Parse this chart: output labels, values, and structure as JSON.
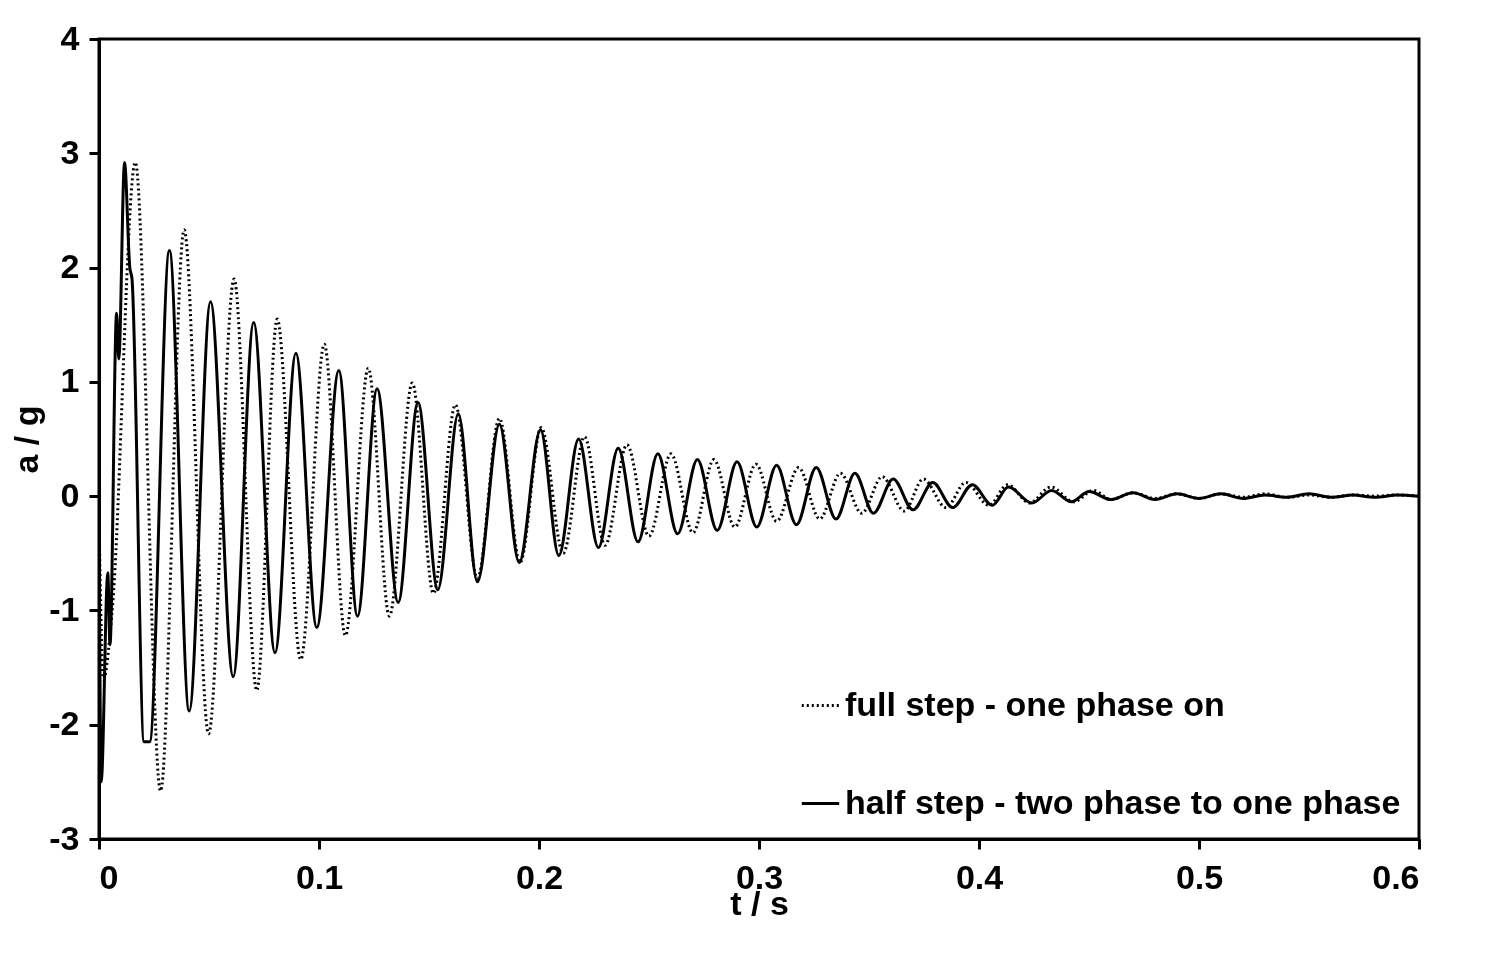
{
  "chart_data": {
    "type": "line",
    "xlabel": "t / s",
    "ylabel": "a / g",
    "xlim": [
      0,
      0.6
    ],
    "ylim": [
      -3,
      4
    ],
    "xticks": [
      0,
      0.1,
      0.2,
      0.3,
      0.4,
      0.5,
      0.6
    ],
    "yticks": [
      -3,
      -2,
      -1,
      0,
      1,
      2,
      3,
      4
    ],
    "legend": "bottom right",
    "series": [
      {
        "name": "full step - one phase on",
        "color": "#000000",
        "line_style": "dotted",
        "x": [
          0,
          0.002,
          0.006,
          0.0165,
          0.028,
          0.0387,
          0.0498,
          0.0614,
          0.0717,
          0.081,
          0.0917,
          0.1024,
          0.112,
          0.1224,
          0.132,
          0.1424,
          0.152,
          0.162,
          0.172,
          0.182,
          0.1914,
          0.201,
          0.211,
          0.2207,
          0.23,
          0.24,
          0.25,
          0.26,
          0.27,
          0.2795,
          0.289,
          0.2986,
          0.308,
          0.318,
          0.3276,
          0.337,
          0.3467,
          0.356,
          0.366,
          0.3747,
          0.385,
          0.394,
          0.4045,
          0.413,
          0.423,
          0.4326,
          0.443,
          0.452,
          0.46,
          0.47,
          0.48,
          0.49,
          0.5,
          0.51,
          0.52,
          0.53,
          0.54,
          0.55,
          0.56,
          0.57,
          0.58,
          0.59,
          0.6
        ],
        "values": [
          -0.2,
          -1.6,
          -1.0,
          2.92,
          -2.58,
          2.33,
          -2.08,
          1.9,
          -1.7,
          1.55,
          -1.43,
          1.33,
          -1.22,
          1.12,
          -1.05,
          0.99,
          -0.85,
          0.8,
          -0.72,
          0.68,
          -0.58,
          0.6,
          -0.5,
          0.52,
          -0.43,
          0.45,
          -0.35,
          0.37,
          -0.32,
          0.32,
          -0.27,
          0.28,
          -0.22,
          0.25,
          -0.2,
          0.2,
          -0.15,
          0.17,
          -0.13,
          0.15,
          -0.1,
          0.12,
          -0.08,
          0.1,
          -0.06,
          0.08,
          -0.05,
          0.05,
          -0.03,
          0.03,
          -0.02,
          0.02,
          -0.02,
          0.02,
          -0.01,
          0.02,
          -0.01,
          0.01,
          -0.01,
          0.01,
          0,
          0.01,
          0
        ]
      },
      {
        "name": "half step - two phase to one phase",
        "color": "#000000",
        "line_style": "solid",
        "x": [
          0,
          0.001,
          0.004,
          0.005,
          0.008,
          0.009,
          0.0116,
          0.014,
          0.015,
          0.0205,
          0.023,
          0.032,
          0.041,
          0.0507,
          0.061,
          0.0703,
          0.08,
          0.0895,
          0.099,
          0.109,
          0.1175,
          0.1264,
          0.136,
          0.145,
          0.154,
          0.1633,
          0.172,
          0.182,
          0.191,
          0.2007,
          0.209,
          0.218,
          0.227,
          0.236,
          0.245,
          0.254,
          0.263,
          0.272,
          0.281,
          0.29,
          0.299,
          0.308,
          0.317,
          0.326,
          0.335,
          0.3436,
          0.352,
          0.361,
          0.37,
          0.379,
          0.388,
          0.397,
          0.406,
          0.4134,
          0.424,
          0.433,
          0.442,
          0.45,
          0.46,
          0.47,
          0.48,
          0.49,
          0.5,
          0.51,
          0.52,
          0.53,
          0.54,
          0.55,
          0.56,
          0.57,
          0.58,
          0.59,
          0.6
        ],
        "values": [
          0,
          -2.5,
          -0.67,
          -1.3,
          1.6,
          1.2,
          2.92,
          2.0,
          1.9,
          -2.15,
          -2.15,
          2.15,
          -1.88,
          1.7,
          -1.58,
          1.52,
          -1.37,
          1.25,
          -1.15,
          1.1,
          -1.05,
          0.94,
          -0.93,
          0.82,
          -0.82,
          0.72,
          -0.75,
          0.63,
          -0.58,
          0.58,
          -0.52,
          0.5,
          -0.45,
          0.42,
          -0.4,
          0.37,
          -0.33,
          0.32,
          -0.3,
          0.3,
          -0.27,
          0.27,
          -0.25,
          0.25,
          -0.2,
          0.2,
          -0.15,
          0.15,
          -0.12,
          0.12,
          -0.1,
          0.1,
          -0.08,
          0.08,
          -0.06,
          0.05,
          -0.05,
          0.04,
          -0.03,
          0.03,
          -0.03,
          0.02,
          -0.02,
          0.02,
          -0.02,
          0.01,
          -0.01,
          0.02,
          -0.01,
          0.01,
          -0.01,
          0.01,
          0
        ]
      }
    ]
  }
}
